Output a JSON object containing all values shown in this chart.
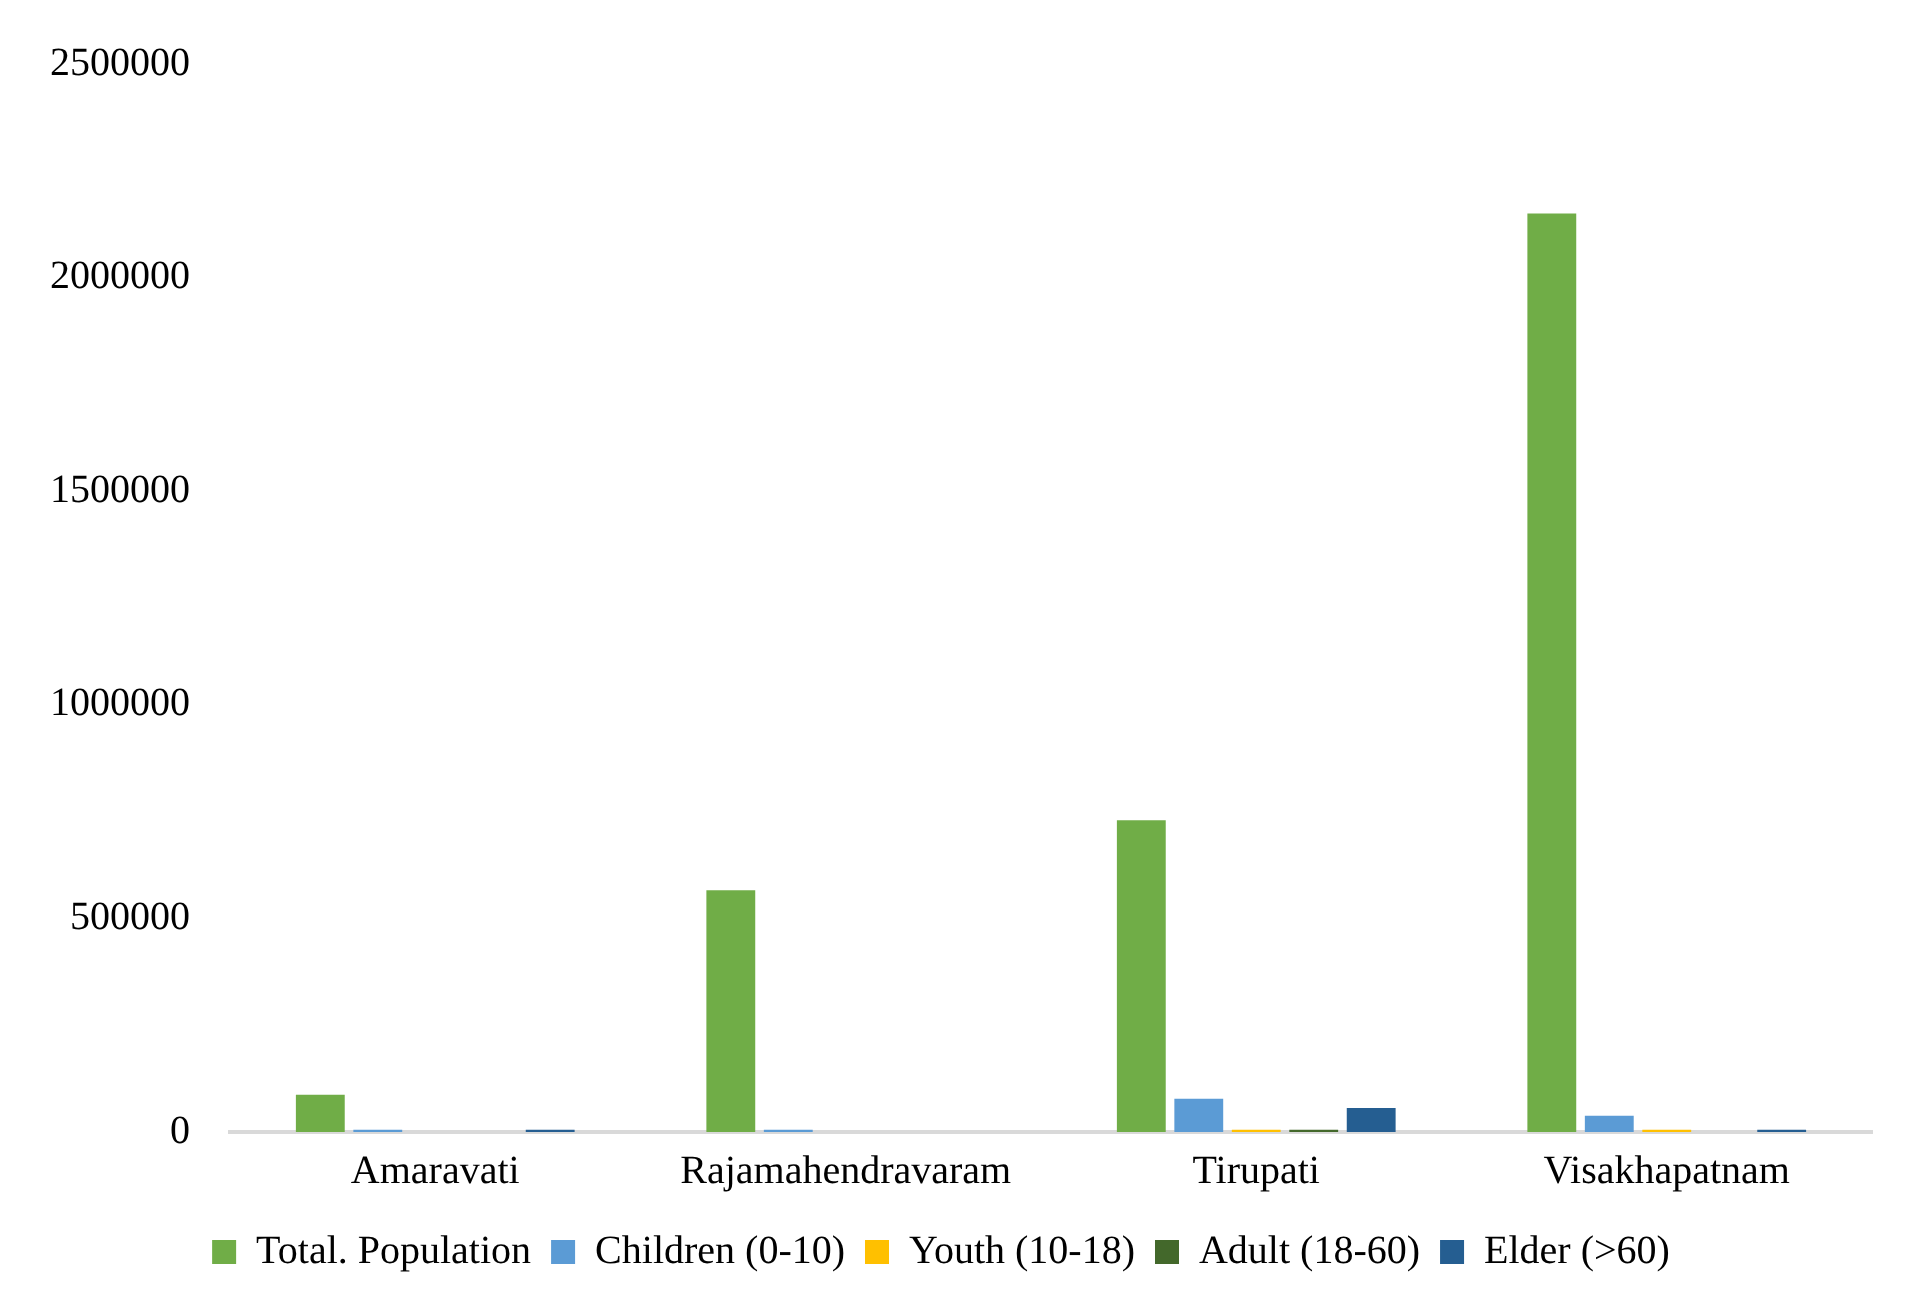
{
  "chart_data": {
    "type": "bar",
    "categories": [
      "Amaravati",
      "Rajamahendravaram",
      "Tirupati",
      "Visakhapatnam"
    ],
    "series": [
      {
        "name": "Total. Population",
        "color": "#70ad47",
        "values": [
          87000,
          566000,
          730000,
          2150000
        ]
      },
      {
        "name": "Children (0-10)",
        "color": "#5b9bd5",
        "values": [
          5000,
          5000,
          78000,
          38000
        ]
      },
      {
        "name": "Youth (10-18)",
        "color": "#ffc000",
        "values": [
          0,
          0,
          5000,
          5000
        ]
      },
      {
        "name": "Adult (18-60)",
        "color": "#43682b",
        "values": [
          0,
          0,
          5000,
          0
        ]
      },
      {
        "name": "Elder (>60)",
        "color": "#255e91",
        "values": [
          5000,
          0,
          56000,
          5000
        ]
      }
    ],
    "ylim": [
      0,
      2500000
    ],
    "yticks": [
      0,
      500000,
      1000000,
      1500000,
      2000000,
      2500000
    ],
    "grid": false,
    "legend": "bottom"
  }
}
